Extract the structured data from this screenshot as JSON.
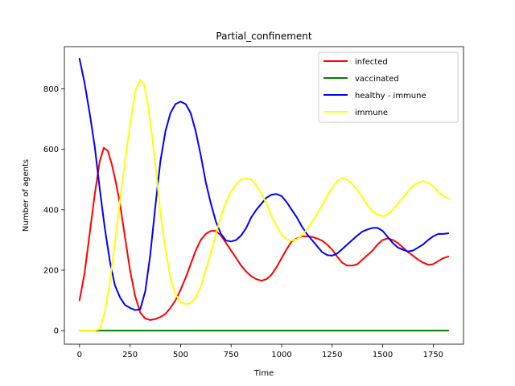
{
  "chart_data": {
    "type": "line",
    "title": "Partial_confinement",
    "xlabel": "Time",
    "ylabel": "Number of agents",
    "xlim": [
      -75,
      1900
    ],
    "ylim": [
      -45,
      940
    ],
    "xticks": [
      0,
      250,
      500,
      750,
      1000,
      1250,
      1500,
      1750
    ],
    "yticks": [
      0,
      200,
      400,
      600,
      800
    ],
    "grid": false,
    "legend": "top-right",
    "series": [
      {
        "name": "infected",
        "color": "#ff0000",
        "points": [
          [
            0,
            100
          ],
          [
            25,
            190
          ],
          [
            50,
            320
          ],
          [
            75,
            450
          ],
          [
            100,
            560
          ],
          [
            120,
            605
          ],
          [
            140,
            595
          ],
          [
            160,
            550
          ],
          [
            180,
            490
          ],
          [
            200,
            420
          ],
          [
            225,
            310
          ],
          [
            250,
            200
          ],
          [
            275,
            115
          ],
          [
            300,
            60
          ],
          [
            325,
            40
          ],
          [
            350,
            35
          ],
          [
            375,
            38
          ],
          [
            400,
            45
          ],
          [
            425,
            55
          ],
          [
            450,
            75
          ],
          [
            475,
            100
          ],
          [
            500,
            135
          ],
          [
            525,
            175
          ],
          [
            550,
            220
          ],
          [
            575,
            265
          ],
          [
            600,
            300
          ],
          [
            625,
            320
          ],
          [
            650,
            330
          ],
          [
            675,
            330
          ],
          [
            700,
            315
          ],
          [
            725,
            290
          ],
          [
            750,
            265
          ],
          [
            775,
            240
          ],
          [
            800,
            215
          ],
          [
            825,
            195
          ],
          [
            850,
            180
          ],
          [
            875,
            170
          ],
          [
            900,
            165
          ],
          [
            925,
            170
          ],
          [
            950,
            185
          ],
          [
            975,
            210
          ],
          [
            1000,
            240
          ],
          [
            1025,
            270
          ],
          [
            1050,
            295
          ],
          [
            1075,
            305
          ],
          [
            1100,
            312
          ],
          [
            1125,
            312
          ],
          [
            1150,
            310
          ],
          [
            1175,
            305
          ],
          [
            1200,
            298
          ],
          [
            1225,
            285
          ],
          [
            1250,
            268
          ],
          [
            1275,
            245
          ],
          [
            1300,
            225
          ],
          [
            1325,
            215
          ],
          [
            1350,
            215
          ],
          [
            1375,
            220
          ],
          [
            1400,
            235
          ],
          [
            1425,
            250
          ],
          [
            1450,
            265
          ],
          [
            1475,
            285
          ],
          [
            1500,
            300
          ],
          [
            1525,
            305
          ],
          [
            1550,
            300
          ],
          [
            1575,
            290
          ],
          [
            1600,
            275
          ],
          [
            1625,
            260
          ],
          [
            1650,
            248
          ],
          [
            1675,
            235
          ],
          [
            1700,
            225
          ],
          [
            1725,
            218
          ],
          [
            1750,
            220
          ],
          [
            1775,
            230
          ],
          [
            1800,
            240
          ],
          [
            1825,
            245
          ]
        ]
      },
      {
        "name": "vaccinated",
        "color": "#008000",
        "points": [
          [
            0,
            0
          ],
          [
            1825,
            0
          ]
        ]
      },
      {
        "name": "healthy - immune",
        "color": "#0000ff",
        "points": [
          [
            0,
            900
          ],
          [
            25,
            820
          ],
          [
            50,
            720
          ],
          [
            75,
            610
          ],
          [
            100,
            470
          ],
          [
            125,
            340
          ],
          [
            150,
            230
          ],
          [
            175,
            150
          ],
          [
            200,
            110
          ],
          [
            225,
            85
          ],
          [
            250,
            75
          ],
          [
            275,
            68
          ],
          [
            300,
            70
          ],
          [
            325,
            130
          ],
          [
            350,
            250
          ],
          [
            375,
            410
          ],
          [
            400,
            560
          ],
          [
            425,
            660
          ],
          [
            450,
            720
          ],
          [
            475,
            750
          ],
          [
            500,
            758
          ],
          [
            525,
            750
          ],
          [
            550,
            720
          ],
          [
            575,
            660
          ],
          [
            600,
            580
          ],
          [
            625,
            490
          ],
          [
            650,
            420
          ],
          [
            675,
            360
          ],
          [
            700,
            320
          ],
          [
            725,
            298
          ],
          [
            750,
            295
          ],
          [
            775,
            300
          ],
          [
            800,
            315
          ],
          [
            825,
            340
          ],
          [
            850,
            375
          ],
          [
            875,
            400
          ],
          [
            900,
            420
          ],
          [
            925,
            440
          ],
          [
            950,
            450
          ],
          [
            975,
            452
          ],
          [
            1000,
            445
          ],
          [
            1025,
            425
          ],
          [
            1050,
            400
          ],
          [
            1075,
            375
          ],
          [
            1100,
            345
          ],
          [
            1125,
            320
          ],
          [
            1150,
            300
          ],
          [
            1175,
            280
          ],
          [
            1200,
            260
          ],
          [
            1225,
            250
          ],
          [
            1250,
            248
          ],
          [
            1275,
            255
          ],
          [
            1300,
            270
          ],
          [
            1325,
            285
          ],
          [
            1350,
            300
          ],
          [
            1375,
            315
          ],
          [
            1400,
            328
          ],
          [
            1425,
            335
          ],
          [
            1450,
            340
          ],
          [
            1475,
            340
          ],
          [
            1500,
            330
          ],
          [
            1525,
            310
          ],
          [
            1550,
            290
          ],
          [
            1575,
            275
          ],
          [
            1600,
            268
          ],
          [
            1625,
            262
          ],
          [
            1650,
            265
          ],
          [
            1675,
            275
          ],
          [
            1700,
            285
          ],
          [
            1725,
            300
          ],
          [
            1750,
            312
          ],
          [
            1775,
            320
          ],
          [
            1800,
            320
          ],
          [
            1825,
            322
          ]
        ]
      },
      {
        "name": "immune",
        "color": "#ffff00",
        "points": [
          [
            0,
            0
          ],
          [
            25,
            0
          ],
          [
            50,
            0
          ],
          [
            75,
            0
          ],
          [
            100,
            5
          ],
          [
            125,
            60
          ],
          [
            150,
            160
          ],
          [
            175,
            290
          ],
          [
            200,
            430
          ],
          [
            225,
            560
          ],
          [
            250,
            680
          ],
          [
            275,
            790
          ],
          [
            300,
            830
          ],
          [
            320,
            815
          ],
          [
            340,
            740
          ],
          [
            360,
            640
          ],
          [
            380,
            520
          ],
          [
            400,
            390
          ],
          [
            425,
            270
          ],
          [
            450,
            175
          ],
          [
            475,
            120
          ],
          [
            500,
            95
          ],
          [
            525,
            88
          ],
          [
            550,
            90
          ],
          [
            575,
            110
          ],
          [
            600,
            145
          ],
          [
            625,
            200
          ],
          [
            650,
            260
          ],
          [
            675,
            320
          ],
          [
            700,
            380
          ],
          [
            725,
            425
          ],
          [
            750,
            460
          ],
          [
            775,
            485
          ],
          [
            800,
            500
          ],
          [
            825,
            505
          ],
          [
            850,
            500
          ],
          [
            875,
            480
          ],
          [
            900,
            455
          ],
          [
            925,
            420
          ],
          [
            950,
            380
          ],
          [
            975,
            345
          ],
          [
            1000,
            318
          ],
          [
            1025,
            302
          ],
          [
            1050,
            298
          ],
          [
            1075,
            302
          ],
          [
            1100,
            315
          ],
          [
            1125,
            335
          ],
          [
            1150,
            360
          ],
          [
            1175,
            385
          ],
          [
            1200,
            415
          ],
          [
            1225,
            445
          ],
          [
            1250,
            472
          ],
          [
            1275,
            495
          ],
          [
            1300,
            505
          ],
          [
            1325,
            500
          ],
          [
            1350,
            485
          ],
          [
            1375,
            465
          ],
          [
            1400,
            440
          ],
          [
            1425,
            415
          ],
          [
            1450,
            395
          ],
          [
            1475,
            385
          ],
          [
            1500,
            378
          ],
          [
            1525,
            385
          ],
          [
            1550,
            400
          ],
          [
            1575,
            420
          ],
          [
            1600,
            440
          ],
          [
            1625,
            460
          ],
          [
            1650,
            478
          ],
          [
            1675,
            490
          ],
          [
            1700,
            495
          ],
          [
            1725,
            490
          ],
          [
            1750,
            478
          ],
          [
            1775,
            460
          ],
          [
            1800,
            445
          ],
          [
            1825,
            438
          ]
        ]
      }
    ]
  }
}
